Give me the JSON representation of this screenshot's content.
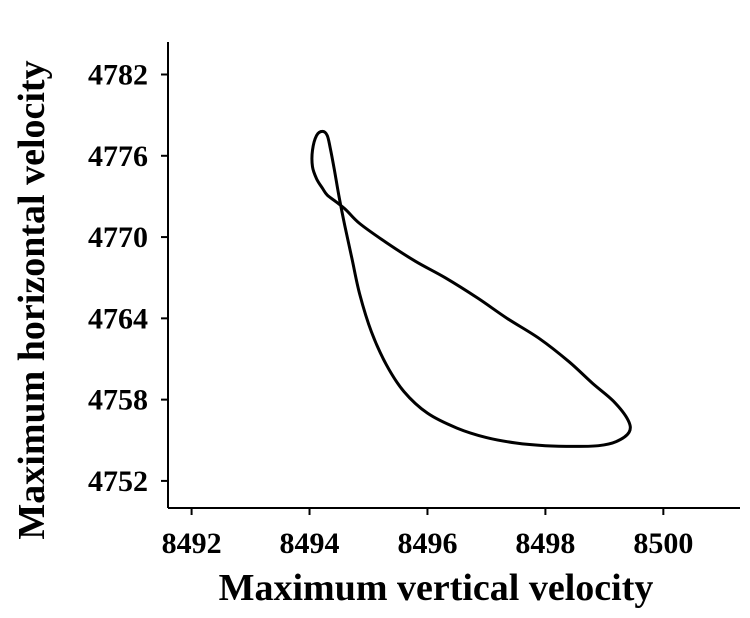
{
  "chart_data": {
    "type": "line",
    "title": "",
    "xlabel": "Maximum vertical velocity",
    "ylabel": "Maximum horizontal velocity",
    "xlim": [
      8491.6,
      8501.3
    ],
    "ylim": [
      4750.0,
      4784.4
    ],
    "x_ticks": [
      8492,
      8494,
      8496,
      8498,
      8500
    ],
    "y_ticks": [
      4752,
      4758,
      4764,
      4770,
      4776,
      4782
    ],
    "grid": false,
    "legend": "none",
    "series": [
      {
        "closed": true,
        "color": "#000000",
        "x": [
          8494.45,
          8494.62,
          8494.85,
          8495.3,
          8495.8,
          8496.3,
          8496.85,
          8497.35,
          8497.9,
          8498.4,
          8498.8,
          8499.15,
          8499.4,
          8499.42,
          8499.2,
          8498.9,
          8498.5,
          8498.0,
          8497.5,
          8497.0,
          8496.5,
          8496.0,
          8495.6,
          8495.3,
          8495.05,
          8494.85,
          8494.72,
          8494.6,
          8494.5,
          8494.42,
          8494.35,
          8494.3,
          8494.22,
          8494.12,
          8494.05,
          8494.05,
          8494.12,
          8494.22,
          8494.3
        ],
        "y": [
          4772.6,
          4772.0,
          4771.0,
          4769.6,
          4768.2,
          4767.0,
          4765.5,
          4764.0,
          4762.5,
          4760.8,
          4759.2,
          4757.9,
          4756.5,
          4755.6,
          4754.9,
          4754.6,
          4754.55,
          4754.6,
          4754.8,
          4755.2,
          4755.9,
          4757.0,
          4758.6,
          4760.6,
          4763.0,
          4765.8,
          4768.4,
          4770.8,
          4773.0,
          4775.0,
          4776.6,
          4777.5,
          4777.8,
          4777.5,
          4776.4,
          4775.2,
          4774.3,
          4773.6,
          4773.1
        ]
      }
    ]
  }
}
